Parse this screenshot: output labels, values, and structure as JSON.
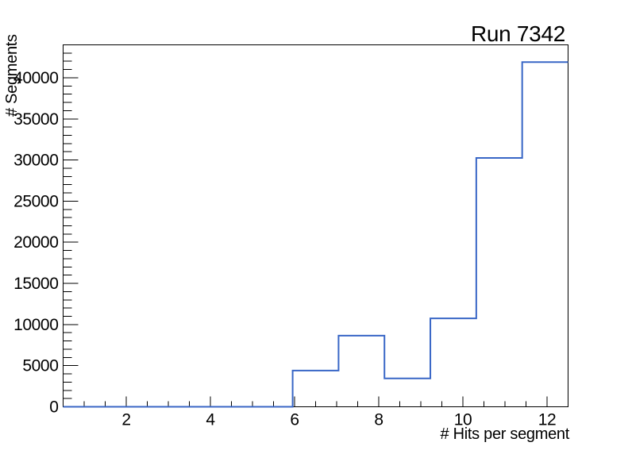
{
  "title": "Run 7342",
  "chart_data": {
    "type": "histogram",
    "title": "Run 7342",
    "xlabel": "# Hits per segment",
    "ylabel": "# Segments",
    "xlim": [
      0.5,
      12.5
    ],
    "ylim": [
      0,
      44000
    ],
    "n_bins": 11,
    "bin_edges": [
      0.5,
      1.5909,
      2.6818,
      3.7727,
      4.8636,
      5.9545,
      7.0455,
      8.1364,
      9.2273,
      10.3182,
      11.4091,
      12.5
    ],
    "counts": [
      0,
      0,
      0,
      0,
      0,
      4400,
      8650,
      3450,
      10750,
      30250,
      41900
    ],
    "x_major_ticks": [
      2,
      4,
      6,
      8,
      10,
      12
    ],
    "x_minor_step": 0.5,
    "y_major_ticks": [
      0,
      5000,
      10000,
      15000,
      20000,
      25000,
      30000,
      35000,
      40000
    ],
    "y_minor_step": 1000,
    "grid": "off",
    "legend": "none",
    "line_color": "#3866c6",
    "line_width": 2,
    "frame_color": "#000000",
    "background_color": "#ffffff",
    "tick_label_color": "#000000"
  }
}
